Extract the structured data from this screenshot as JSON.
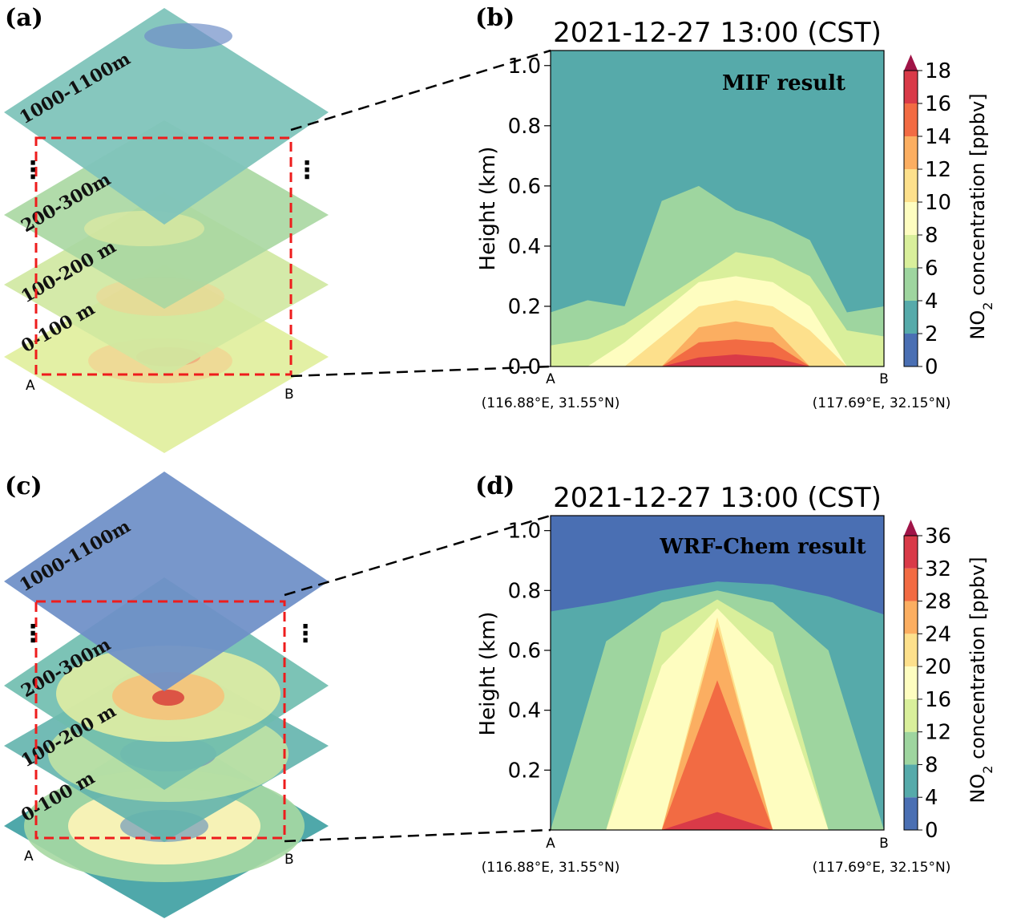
{
  "panels": [
    {
      "id": "a",
      "label": "(a)",
      "kind": "stack",
      "layers": [
        {
          "text": "1000-1100m",
          "tone": "mif_top"
        },
        {
          "text": "200-300m",
          "tone": "mif_mid"
        },
        {
          "text": "100-200 m",
          "tone": "mif_mid2"
        },
        {
          "text": "0-100 m",
          "tone": "mif_low"
        }
      ],
      "ellipsis": "⋮",
      "a_label": "A",
      "b_label": "B"
    },
    {
      "id": "b",
      "label": "(b)",
      "kind": "section",
      "title": "2021-12-27 13:00 (CST)",
      "inset": "MIF result",
      "ylabel": "Height (km)",
      "y_ticks": [
        "0.0",
        "0.2",
        "0.4",
        "0.6",
        "0.8",
        "1.0"
      ],
      "x_end_labels": [
        "A",
        "B"
      ],
      "x_end_coords": [
        "(116.88°E, 31.55°N)",
        "(117.69°E, 32.15°N)"
      ],
      "cbar_label_prefix": "NO",
      "cbar_label_sub": "2",
      "cbar_label_suffix": " concentration [ppbv]",
      "cbar_ticks": [
        "0",
        "2",
        "4",
        "6",
        "8",
        "10",
        "12",
        "14",
        "16",
        "18"
      ]
    },
    {
      "id": "c",
      "label": "(c)",
      "kind": "stack",
      "layers": [
        {
          "text": "1000-1100m",
          "tone": "wrf_top"
        },
        {
          "text": "200-300m",
          "tone": "wrf_mid"
        },
        {
          "text": "100-200 m",
          "tone": "wrf_mid2"
        },
        {
          "text": "0-100 m",
          "tone": "wrf_low"
        }
      ],
      "ellipsis": "⋮",
      "a_label": "A",
      "b_label": "B"
    },
    {
      "id": "d",
      "label": "(d)",
      "kind": "section",
      "title": "2021-12-27 13:00 (CST)",
      "inset": "WRF-Chem result",
      "ylabel": "Height (km)",
      "y_ticks": [
        "0.2",
        "0.4",
        "0.6",
        "0.8",
        "1.0"
      ],
      "x_end_labels": [
        "A",
        "B"
      ],
      "x_end_coords": [
        "(116.88°E, 31.55°N)",
        "(117.69°E, 32.15°N)"
      ],
      "cbar_label_prefix": "NO",
      "cbar_label_sub": "2",
      "cbar_label_suffix": " concentration [ppbv]",
      "cbar_ticks": [
        "0",
        "4",
        "8",
        "12",
        "16",
        "20",
        "24",
        "28",
        "32",
        "36"
      ]
    }
  ],
  "colors": {
    "levels": [
      "#4a6fb3",
      "#56aaaa",
      "#9ed59f",
      "#d9ef9b",
      "#fefdc0",
      "#fde08c",
      "#fbae61",
      "#f26b43",
      "#d93a48",
      "#a01447"
    ],
    "mif_top": "#7ec4ba",
    "mif_mid": "#a7d7a0",
    "mif_mid2": "#cfe9a3",
    "mif_low": "#e2f1a2",
    "wrf_top": "#6e8fc7",
    "wrf_mid": "#5eb0ad",
    "wrf_mid2": "#7cc3ad",
    "wrf_low": "#4fa8aa",
    "dash_red": "#ee1c1c",
    "dash_black": "#000000"
  },
  "chart_data": [
    {
      "panel": "b",
      "type": "heatmap",
      "title": "2021-12-27 13:00 (CST)",
      "ylabel": "Height (km)",
      "ylim": [
        0.0,
        1.05
      ],
      "x": [
        "A",
        "B"
      ],
      "colorbar": {
        "label": "NO2 concentration [ppbv]",
        "levels": [
          0,
          2,
          4,
          6,
          8,
          10,
          12,
          14,
          16,
          18
        ],
        "range": [
          0,
          18
        ]
      },
      "contours": [
        {
          "level": 4,
          "top_km": [
            0.18,
            0.22,
            0.2,
            0.55,
            0.6,
            0.52,
            0.48,
            0.42,
            0.18,
            0.2
          ]
        },
        {
          "level": 6,
          "top_km": [
            0.07,
            0.09,
            0.14,
            0.22,
            0.3,
            0.38,
            0.36,
            0.3,
            0.12,
            0.1
          ]
        },
        {
          "level": 8,
          "top_km": [
            0.0,
            0.0,
            0.08,
            0.18,
            0.28,
            0.3,
            0.28,
            0.2,
            0.0,
            0.0
          ]
        },
        {
          "level": 10,
          "top_km": [
            0.0,
            0.0,
            0.0,
            0.1,
            0.2,
            0.22,
            0.2,
            0.12,
            0.0,
            0.0
          ]
        },
        {
          "level": 12,
          "top_km": [
            0.0,
            0.0,
            0.0,
            0.0,
            0.13,
            0.15,
            0.13,
            0.0,
            0.0,
            0.0
          ]
        },
        {
          "level": 14,
          "top_km": [
            0.0,
            0.0,
            0.0,
            0.0,
            0.08,
            0.09,
            0.08,
            0.0,
            0.0,
            0.0
          ]
        },
        {
          "level": 16,
          "top_km": [
            0.0,
            0.0,
            0.0,
            0.0,
            0.03,
            0.04,
            0.03,
            0.0,
            0.0,
            0.0
          ]
        }
      ]
    },
    {
      "panel": "d",
      "type": "heatmap",
      "title": "2021-12-27 13:00 (CST)",
      "ylabel": "Height (km)",
      "ylim": [
        0.0,
        1.05
      ],
      "x": [
        "A",
        "B"
      ],
      "colorbar": {
        "label": "NO2 concentration [ppbv]",
        "levels": [
          0,
          4,
          8,
          12,
          16,
          20,
          24,
          28,
          32,
          36
        ],
        "range": [
          0,
          36
        ]
      },
      "contours": [
        {
          "level": 4,
          "top_km": [
            0.73,
            0.76,
            0.8,
            0.83,
            0.82,
            0.78,
            0.72
          ]
        },
        {
          "level": 8,
          "top_km": [
            0.0,
            0.63,
            0.76,
            0.8,
            0.76,
            0.6,
            0.0
          ]
        },
        {
          "level": 12,
          "top_km": [
            0.0,
            0.0,
            0.66,
            0.77,
            0.66,
            0.0,
            0.0
          ]
        },
        {
          "level": 16,
          "top_km": [
            0.0,
            0.0,
            0.55,
            0.74,
            0.55,
            0.0,
            0.0
          ]
        },
        {
          "level": 20,
          "top_km": [
            0.0,
            0.0,
            0.0,
            0.71,
            0.0,
            0.0,
            0.0
          ]
        },
        {
          "level": 24,
          "top_km": [
            0.0,
            0.0,
            0.0,
            0.68,
            0.0,
            0.0,
            0.0
          ]
        },
        {
          "level": 28,
          "top_km": [
            0.0,
            0.0,
            0.0,
            0.5,
            0.0,
            0.0,
            0.0
          ]
        },
        {
          "level": 32,
          "top_km": [
            0.0,
            0.0,
            0.0,
            0.06,
            0.0,
            0.0,
            0.0
          ]
        }
      ]
    }
  ]
}
